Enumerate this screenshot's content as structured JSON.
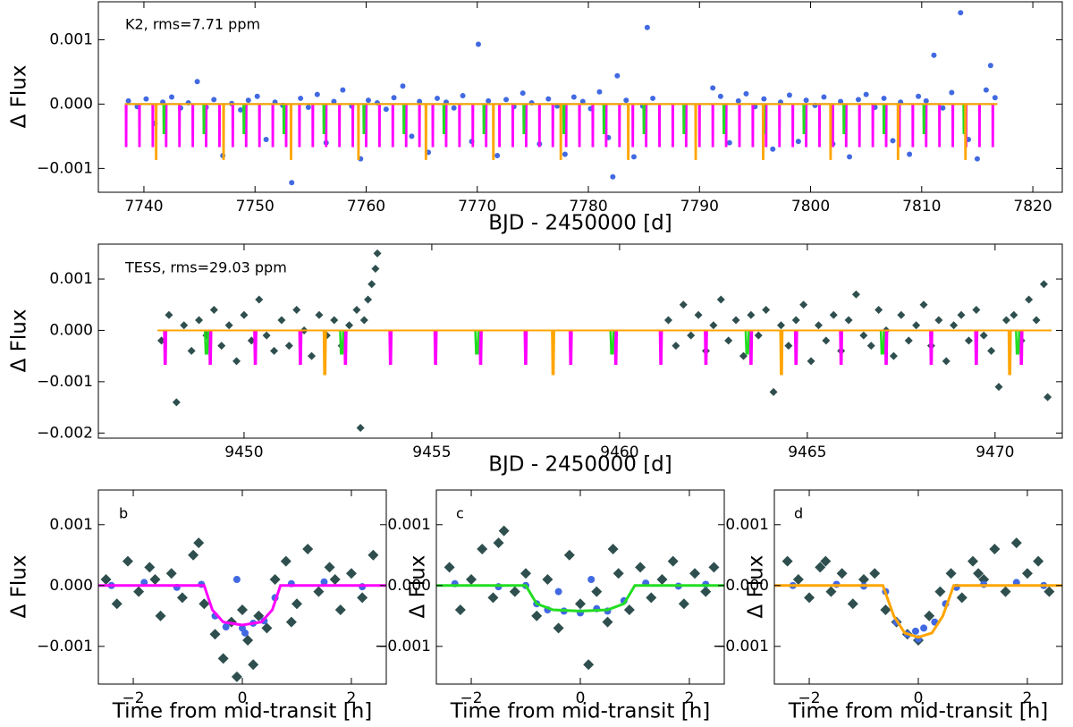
{
  "chart_data": [
    {
      "type": "scatter",
      "annotation": "K2,  rms=7.71 ppm",
      "xlabel": "BJD - 2450000 [d]",
      "ylabel": "Δ Flux",
      "xlim": [
        7735.9,
        7822.65
      ],
      "ylim": [
        -0.00137,
        0.00159
      ],
      "xticks": [
        7740,
        7750,
        7760,
        7770,
        7780,
        7790,
        7800,
        7810,
        7820
      ],
      "yticks": [
        {
          "value": -0.001,
          "label": "−0.001"
        },
        {
          "value": 0,
          "label": "0.000"
        },
        {
          "value": 0.001,
          "label": "0.001"
        }
      ],
      "series": [
        {
          "color": "#4169e1",
          "marker": "circle",
          "x": [
            7738.6,
            7739.4,
            7740.2,
            7741.0,
            7741.7,
            7742.5,
            7743.3,
            7744.0,
            7744.8,
            7745.6,
            7746.3,
            7747.1,
            7747.9,
            7748.7,
            7749.4,
            7750.2,
            7751.0,
            7751.8,
            7752.5,
            7753.3,
            7754.1,
            7754.8,
            7755.6,
            7756.4,
            7757.1,
            7757.9,
            7758.7,
            7759.5,
            7760.2,
            7761.0,
            7761.8,
            7762.5,
            7763.3,
            7764.1,
            7764.8,
            7765.6,
            7766.4,
            7767.2,
            7767.9,
            7768.7,
            7769.5,
            7770.1,
            7771.0,
            7771.8,
            7772.6,
            7773.3,
            7774.1,
            7774.9,
            7775.6,
            7776.4,
            7777.2,
            7777.9,
            7778.7,
            7779.5,
            7780.2,
            7781.0,
            7781.8,
            7782.2,
            7782.6,
            7783.4,
            7784.1,
            7784.9,
            7785.3,
            7785.8,
            7791.2,
            7791.9,
            7792.7,
            7793.5,
            7794.2,
            7795.0,
            7795.8,
            7796.6,
            7797.3,
            7798.1,
            7798.9,
            7799.6,
            7800.4,
            7801.2,
            7802.0,
            7802.7,
            7803.5,
            7804.3,
            7805.0,
            7805.8,
            7806.6,
            7807.4,
            7808.1,
            7808.9,
            7809.7,
            7810.4,
            7811.1,
            7811.9,
            7812.7,
            7813.5,
            7814.2,
            7815.0,
            7815.8,
            7816.2,
            7816.6
          ],
          "values": [
            5e-05,
            -4e-05,
            8e-05,
            -0.0003,
            3e-05,
            0.00011,
            -6e-05,
            2e-05,
            0.00035,
            -5e-05,
            7e-05,
            -0.0008,
            1e-05,
            -9e-05,
            6e-05,
            0.00012,
            -0.00055,
            3e-05,
            -2e-05,
            -0.00122,
            9e-05,
            -5e-05,
            0.00015,
            -0.0006,
            4e-05,
            0.00022,
            -3e-05,
            -0.00085,
            6e-05,
            2e-05,
            -8e-05,
            0.0001,
            0.00028,
            -0.0005,
            4e-05,
            -0.00075,
            9e-05,
            3e-05,
            -6e-05,
            0.00013,
            -0.00058,
            0.00093,
            5e-05,
            -0.0008,
            7e-05,
            -4e-05,
            0.00017,
            2e-05,
            -0.00062,
            8e-05,
            -3e-05,
            -0.00078,
            0.00011,
            4e-05,
            -7e-05,
            0.00019,
            -0.00052,
            -0.00113,
            0.00044,
            6e-05,
            -0.00082,
            -3e-05,
            0.00119,
            9e-05,
            0.00025,
            0.00012,
            -0.0006,
            5e-05,
            0.00016,
            -4e-05,
            8e-05,
            -0.0007,
            3e-05,
            0.00014,
            -0.00058,
            6e-05,
            -2e-05,
            0.00011,
            -0.00062,
            4e-05,
            -0.00082,
            7e-05,
            0.00015,
            -5e-05,
            9e-05,
            -0.00057,
            3e-05,
            -0.00078,
            0.00012,
            5e-05,
            0.00076,
            -6e-05,
            0.00018,
            0.00142,
            -0.00055,
            -0.00085,
            0.00022,
            0.0006,
            0.0001
          ]
        }
      ],
      "transits": [
        {
          "color": "#ff00ff",
          "t0": 7738.4,
          "period": 1.2,
          "depth": -0.00065,
          "duration": 0.054,
          "span": [
            7738.3,
            7816.8
          ]
        },
        {
          "color": "#22dd22",
          "t0": 7741.8,
          "period": 3.6,
          "depth": -0.00045,
          "duration": 0.083,
          "span": [
            7738.3,
            7816.8
          ]
        },
        {
          "color": "#ffa500",
          "t0": 7741.1,
          "period": 6.07,
          "depth": -0.00085,
          "duration": 0.054,
          "span": [
            7738.3,
            7816.8
          ]
        }
      ]
    },
    {
      "type": "scatter",
      "annotation": "TESS,  rms=29.03 ppm",
      "xlabel": "BJD - 2450000 [d]",
      "ylabel": "Δ Flux",
      "xlim": [
        9446.12,
        9471.79
      ],
      "ylim": [
        -0.0021,
        0.00168
      ],
      "xticks": [
        9450,
        9455,
        9460,
        9465,
        9470
      ],
      "yticks": [
        {
          "value": -0.002,
          "label": "−0.002"
        },
        {
          "value": -0.001,
          "label": "−0.001"
        },
        {
          "value": 0,
          "label": "0.000"
        },
        {
          "value": 0.001,
          "label": "0.001"
        }
      ],
      "series": [
        {
          "color": "#2f4f4f",
          "marker": "diamond",
          "x": [
            9447.8,
            9448.0,
            9448.2,
            9448.4,
            9448.6,
            9448.8,
            9449.0,
            9449.2,
            9449.4,
            9449.6,
            9449.8,
            9450.0,
            9450.2,
            9450.4,
            9450.6,
            9450.8,
            9451.0,
            9451.2,
            9451.4,
            9451.6,
            9451.8,
            9452.0,
            9452.2,
            9452.4,
            9452.6,
            9452.8,
            9453.0,
            9453.1,
            9453.2,
            9453.3,
            9453.4,
            9453.5,
            9453.55,
            9461.3,
            9461.5,
            9461.7,
            9461.9,
            9462.1,
            9462.3,
            9462.5,
            9462.7,
            9462.9,
            9463.1,
            9463.3,
            9463.5,
            9463.7,
            9463.9,
            9464.1,
            9464.3,
            9464.5,
            9464.7,
            9464.9,
            9465.1,
            9465.3,
            9465.5,
            9465.7,
            9465.9,
            9466.1,
            9466.3,
            9466.5,
            9466.7,
            9466.9,
            9467.1,
            9467.3,
            9467.5,
            9467.7,
            9467.9,
            9468.1,
            9468.3,
            9468.5,
            9468.7,
            9468.9,
            9469.1,
            9469.3,
            9469.5,
            9469.7,
            9469.9,
            9470.1,
            9470.3,
            9470.5,
            9470.7,
            9470.9,
            9471.1,
            9471.3,
            9471.4
          ],
          "values": [
            -0.0002,
            0.0003,
            -0.0014,
            0.0001,
            -0.0004,
            0.0002,
            -0.0001,
            0.0004,
            -0.0003,
            0.0001,
            -0.0006,
            0.0003,
            -0.0002,
            0.0006,
            -0.0001,
            -0.0004,
            0.0002,
            -0.0003,
            0.0004,
            0.0,
            -0.0005,
            0.0003,
            -0.0001,
            0.0002,
            -0.0003,
            0.0001,
            0.0004,
            -0.0019,
            0.0002,
            0.0006,
            0.0009,
            0.0012,
            0.0015,
            0.0002,
            -0.0003,
            0.0005,
            -0.0001,
            0.0003,
            -0.0004,
            0.0001,
            0.0006,
            -0.0002,
            0.0002,
            -0.0005,
            0.0003,
            -0.0001,
            0.0004,
            -0.0012,
            0.0001,
            -0.0003,
            0.0002,
            0.0005,
            -0.0006,
            0.0001,
            -0.0002,
            0.0003,
            -0.0004,
            0.0002,
            0.0007,
            -0.0001,
            -0.0003,
            0.0004,
            0.0,
            -0.0005,
            0.0003,
            -0.0002,
            0.0001,
            0.0005,
            -0.0003,
            0.0002,
            -0.0006,
            0.0001,
            0.0003,
            -0.0002,
            0.0004,
            -0.0001,
            -0.0004,
            -0.0011,
            0.0002,
            0.0003,
            -0.0002,
            0.0006,
            0.0002,
            0.0009,
            -0.0013
          ]
        }
      ],
      "transits": [
        {
          "color": "#ff00ff",
          "t0": 9447.9,
          "period": 1.2,
          "depth": -0.00065,
          "duration": 0.054,
          "span": [
            9447.7,
            9471.5
          ]
        },
        {
          "color": "#22dd22",
          "t0": 9449.0,
          "period": 3.6,
          "depth": -0.00045,
          "duration": 0.083,
          "span": [
            9447.7,
            9471.5
          ]
        },
        {
          "color": "#ffa500",
          "t0": 9452.15,
          "period": 6.08,
          "depth": -0.00085,
          "duration": 0.054,
          "span": [
            9447.7,
            9471.5
          ]
        }
      ]
    },
    {
      "type": "scatter",
      "annotation": "b",
      "xlabel": "Time from mid-transit [h]",
      "ylabel": "Δ Flux",
      "xlim": [
        -2.64,
        2.64
      ],
      "ylim": [
        -0.00162,
        0.00157
      ],
      "xticks": [
        {
          "value": -2,
          "label": "−2"
        },
        0,
        2
      ],
      "yticks": [
        {
          "value": -0.001,
          "label": "−0.001"
        },
        {
          "value": 0,
          "label": "0.000"
        },
        {
          "value": 0.001,
          "label": "0.001"
        }
      ],
      "series": [
        {
          "color": "#2f4f4f",
          "marker": "diamond",
          "x": [
            -2.5,
            -2.3,
            -2.1,
            -1.9,
            -1.7,
            -1.5,
            -1.3,
            -1.1,
            -0.9,
            -0.7,
            -0.5,
            -0.35,
            -0.2,
            -0.1,
            0.0,
            0.1,
            0.2,
            0.3,
            0.45,
            0.6,
            0.8,
            1.0,
            1.2,
            1.4,
            1.6,
            1.8,
            2.0,
            2.2,
            2.4,
            -0.8,
            0.9,
            -1.6,
            1.7
          ],
          "values": [
            0.0001,
            -0.0003,
            0.0004,
            -0.0001,
            0.0003,
            -0.0005,
            0.0002,
            -0.0002,
            0.0005,
            -0.0003,
            -0.0008,
            -0.0012,
            -0.0006,
            -0.0015,
            -0.0004,
            -0.0009,
            -0.0013,
            -0.0005,
            -0.0007,
            0.0001,
            0.0004,
            -0.0003,
            0.0006,
            -0.0001,
            0.0003,
            -0.0004,
            0.0002,
            -0.0002,
            0.0005,
            0.0007,
            -0.0006,
            0.0001,
            0.0001
          ]
        },
        {
          "color": "#4169e1",
          "marker": "circle",
          "x": [
            -2.4,
            -1.8,
            -1.2,
            -0.75,
            -0.5,
            -0.3,
            0.0,
            0.2,
            0.4,
            0.6,
            0.9,
            1.5,
            2.2,
            -0.1,
            0.05
          ],
          "values": [
            0.0,
            5e-05,
            -3e-05,
            2e-05,
            -0.0005,
            -0.00068,
            -0.0007,
            -0.00062,
            -0.00058,
            -0.0002,
            3e-05,
            6e-05,
            -2e-05,
            0.0001,
            -0.00078
          ]
        },
        {
          "color": "#ff00ff",
          "marker": "line",
          "x": [
            -2.64,
            -0.7,
            -0.55,
            -0.35,
            0,
            0.35,
            0.55,
            0.7,
            2.64
          ],
          "values": [
            0,
            0,
            -0.0004,
            -0.0006,
            -0.00065,
            -0.0006,
            -0.0004,
            0,
            0
          ]
        }
      ]
    },
    {
      "type": "scatter",
      "annotation": "c",
      "xlabel": "Time from mid-transit [h]",
      "ylabel": "Δ Flux",
      "xlim": [
        -2.64,
        2.64
      ],
      "ylim": [
        -0.00162,
        0.00157
      ],
      "xticks": [
        {
          "value": -2,
          "label": "−2"
        },
        0,
        2
      ],
      "yticks": [
        {
          "value": -0.001,
          "label": "−0.001"
        },
        {
          "value": 0,
          "label": "0.000"
        },
        {
          "value": 0.001,
          "label": "0.001"
        }
      ],
      "series": [
        {
          "color": "#2f4f4f",
          "marker": "diamond",
          "x": [
            -2.4,
            -2.2,
            -2.0,
            -1.8,
            -1.6,
            -1.4,
            -1.2,
            -1.0,
            -0.8,
            -0.6,
            -0.4,
            -0.2,
            0.0,
            0.15,
            0.3,
            0.5,
            0.7,
            0.9,
            1.1,
            1.3,
            1.5,
            1.7,
            1.9,
            2.1,
            2.3,
            2.45,
            -1.5,
            0.6
          ],
          "values": [
            0.0003,
            -0.0004,
            0.0001,
            0.0006,
            -0.0002,
            0.0009,
            -0.0001,
            0.0002,
            -0.0005,
            0.0001,
            -0.0007,
            0.0005,
            -0.0003,
            -0.0013,
            -0.0001,
            -0.0006,
            0.0002,
            -0.0004,
            0.0003,
            -0.0002,
            0.0001,
            0.0004,
            -0.0003,
            0.0002,
            -0.0001,
            0.0003,
            0.0007,
            0.0006
          ]
        },
        {
          "color": "#4169e1",
          "marker": "circle",
          "x": [
            -2.3,
            -1.5,
            -1.0,
            -0.8,
            -0.6,
            -0.3,
            0.0,
            0.3,
            0.5,
            0.8,
            1.2,
            1.8,
            2.3,
            -0.4,
            0.2
          ],
          "values": [
            3e-05,
            -2e-05,
            0.0,
            -0.0003,
            -0.0004,
            -0.00042,
            -0.00045,
            -0.00038,
            -0.00042,
            -0.00025,
            4e-05,
            -1e-05,
            2e-05,
            -0.0001,
            0.0001
          ]
        },
        {
          "color": "#22dd22",
          "marker": "line",
          "x": [
            -2.64,
            -1.0,
            -0.8,
            -0.5,
            0,
            0.5,
            0.8,
            1.0,
            2.64
          ],
          "values": [
            0,
            0,
            -0.0003,
            -0.0004,
            -0.00042,
            -0.0004,
            -0.0003,
            0,
            0
          ]
        }
      ]
    },
    {
      "type": "scatter",
      "annotation": "d",
      "xlabel": "Time from mid-transit [h]",
      "ylabel": "Δ Flux",
      "xlim": [
        -2.64,
        2.64
      ],
      "ylim": [
        -0.00162,
        0.00157
      ],
      "xticks": [
        {
          "value": -2,
          "label": "−2"
        },
        0,
        2
      ],
      "yticks": [
        {
          "value": -0.001,
          "label": "−0.001"
        },
        {
          "value": 0,
          "label": "0.000"
        },
        {
          "value": 0.001,
          "label": "0.001"
        }
      ],
      "series": [
        {
          "color": "#2f4f4f",
          "marker": "diamond",
          "x": [
            -2.4,
            -2.2,
            -2.0,
            -1.8,
            -1.6,
            -1.4,
            -1.2,
            -1.0,
            -0.8,
            -0.6,
            -0.4,
            -0.2,
            0.0,
            0.2,
            0.4,
            0.6,
            0.8,
            1.0,
            1.2,
            1.4,
            1.6,
            1.8,
            2.0,
            2.2,
            2.4,
            -1.7,
            1.1
          ],
          "values": [
            0.0004,
            0.0001,
            -0.0002,
            0.0003,
            -0.0001,
            0.0002,
            -0.0003,
            0.0001,
            0.0002,
            -0.0004,
            -0.0006,
            -0.0008,
            -0.0009,
            -0.0005,
            -0.0001,
            0.0002,
            -0.0002,
            0.0004,
            0.0001,
            0.0006,
            -0.0001,
            0.0007,
            0.0002,
            0.0004,
            -0.0001,
            0.0004,
            0.0002
          ]
        },
        {
          "color": "#4169e1",
          "marker": "circle",
          "x": [
            -2.3,
            -1.5,
            -1.0,
            -0.6,
            -0.4,
            -0.2,
            0.0,
            0.1,
            0.3,
            0.5,
            0.7,
            1.2,
            1.8,
            2.3,
            -0.05
          ],
          "values": [
            0.0,
            2e-05,
            -1e-05,
            -0.0001,
            -0.0006,
            -0.0008,
            -0.00088,
            -0.0007,
            -0.0006,
            -0.0003,
            -3e-05,
            2e-05,
            5e-05,
            0.0,
            -0.00075
          ]
        },
        {
          "color": "#ffa500",
          "marker": "line",
          "x": [
            -2.64,
            -0.65,
            -0.45,
            -0.25,
            0,
            0.25,
            0.45,
            0.65,
            2.64
          ],
          "values": [
            0,
            0,
            -0.0005,
            -0.00078,
            -0.00085,
            -0.00078,
            -0.0005,
            0,
            0
          ]
        }
      ]
    }
  ]
}
